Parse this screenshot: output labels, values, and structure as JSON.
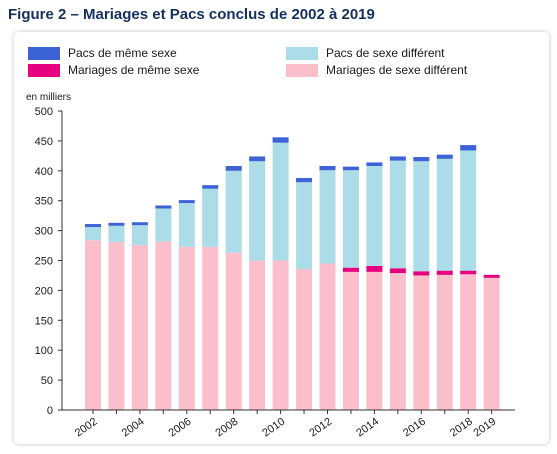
{
  "figure": {
    "title": "Figure 2 – Mariages et Pacs conclus de 2002 à 2019"
  },
  "chart_data": {
    "type": "bar",
    "stacked": true,
    "title": "Figure 2 – Mariages et Pacs conclus de 2002 à 2019",
    "ylabel": "en milliers",
    "ylim": [
      0,
      500
    ],
    "yticks": [
      0,
      50,
      100,
      150,
      200,
      250,
      300,
      350,
      400,
      450,
      500
    ],
    "categories": [
      "2002",
      "2003",
      "2004",
      "2005",
      "2006",
      "2007",
      "2008",
      "2009",
      "2010",
      "2011",
      "2012",
      "2013",
      "2014",
      "2015",
      "2016",
      "2017",
      "2018",
      "2019"
    ],
    "xtick_labels": [
      "2002",
      "",
      "2004",
      "",
      "2006",
      "",
      "2008",
      "",
      "2010",
      "",
      "2012",
      "",
      "2014",
      "",
      "2016",
      "",
      "2018",
      "2019"
    ],
    "grid": false,
    "legend": "top",
    "series": [
      {
        "name": "Mariages de sexe différent",
        "color": "#fbbfcc",
        "values": [
          284,
          281,
          276,
          282,
          273,
          273,
          263,
          250,
          250,
          236,
          245,
          231,
          231,
          229,
          225,
          226,
          227,
          221
        ]
      },
      {
        "name": "Mariages de même sexe",
        "color": "#e6007e",
        "values": [
          0,
          0,
          0,
          0,
          0,
          0,
          0,
          0,
          0,
          0,
          0,
          7,
          10,
          8,
          7,
          7,
          6,
          5
        ]
      },
      {
        "name": "Pacs de sexe différent",
        "color": "#acdce8",
        "values": [
          22,
          27,
          33,
          55,
          73,
          97,
          137,
          166,
          197,
          145,
          156,
          163,
          167,
          180,
          184,
          187,
          201,
          0
        ]
      },
      {
        "name": "Pacs de même sexe",
        "color": "#3c64d6",
        "values": [
          5,
          5,
          5,
          5,
          5,
          6,
          8,
          8,
          9,
          7,
          7,
          6,
          6,
          7,
          7,
          7,
          9,
          0
        ]
      }
    ]
  },
  "legend_layout": [
    "Pacs de même sexe",
    "Pacs de sexe différent",
    "Mariages de même sexe",
    "Mariages de sexe différent"
  ]
}
